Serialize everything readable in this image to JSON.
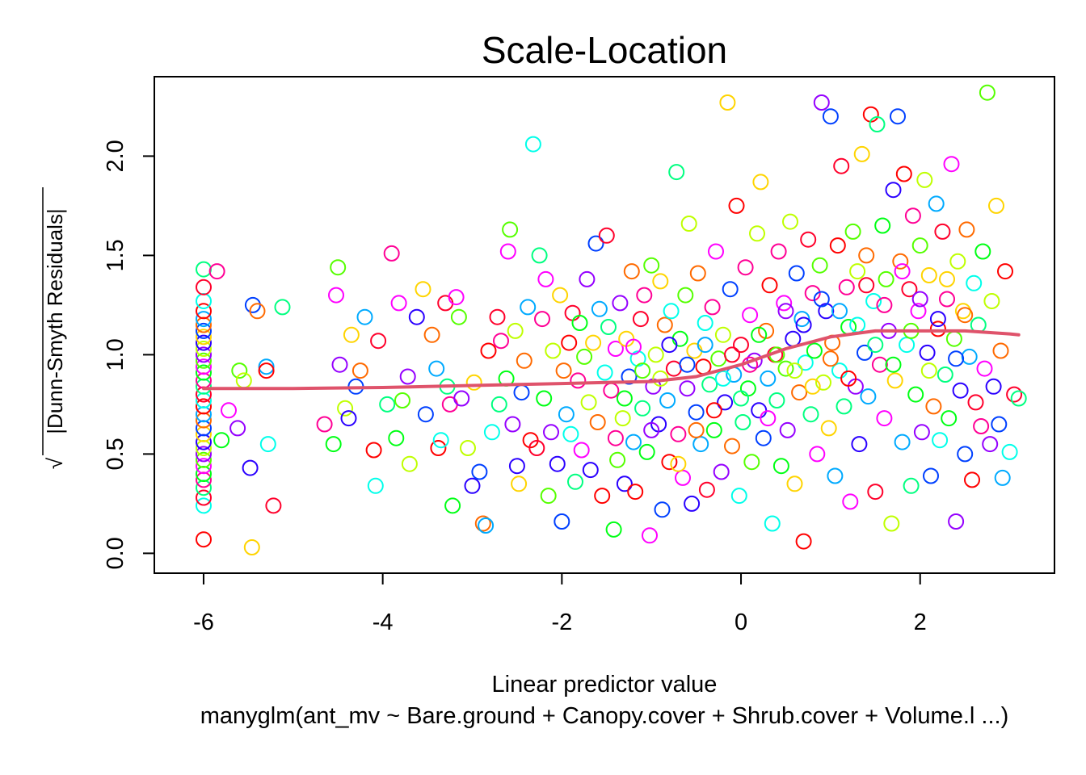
{
  "chart_data": {
    "type": "scatter",
    "title": "Scale-Location",
    "xlabel": "Linear predictor value",
    "subtitle": "manyglm(ant_mv ~ Bare.ground + Canopy.cover + Shrub.cover + Volume.l ...)",
    "ylabel_radical": "√",
    "ylabel": "|Dunn-Smyth Residuals|",
    "xlim": [
      -6.55,
      3.5
    ],
    "ylim": [
      -0.1,
      2.4
    ],
    "xticks": [
      {
        "value": -6,
        "label": "-6"
      },
      {
        "value": -4,
        "label": "-4"
      },
      {
        "value": -2,
        "label": "-2"
      },
      {
        "value": 0,
        "label": "0"
      },
      {
        "value": 2,
        "label": "2"
      }
    ],
    "yticks": [
      {
        "value": 0.0,
        "label": "0.0"
      },
      {
        "value": 0.5,
        "label": "0.5"
      },
      {
        "value": 1.0,
        "label": "1.0"
      },
      {
        "value": 1.5,
        "label": "1.5"
      },
      {
        "value": 2.0,
        "label": "2.0"
      }
    ],
    "marker": "open-circle",
    "palette": [
      "#FF0000",
      "#FF6A00",
      "#FFD400",
      "#BFFF00",
      "#55FF00",
      "#00FF15",
      "#00FF80",
      "#00FFEA",
      "#00AAFF",
      "#0040FF",
      "#2A00FF",
      "#9500FF",
      "#FF00FF",
      "#FF0095",
      "#FF002B"
    ],
    "smooth_color": "#DF536B",
    "points": [
      [
        -6,
        0.07
      ],
      [
        -6,
        0.24
      ],
      [
        -6,
        0.28
      ],
      [
        -6,
        0.33
      ],
      [
        -6,
        0.37
      ],
      [
        -6,
        0.4
      ],
      [
        -6,
        0.44
      ],
      [
        -6,
        0.47
      ],
      [
        -6,
        0.5
      ],
      [
        -6,
        0.53
      ],
      [
        -6,
        0.56
      ],
      [
        -6,
        0.6
      ],
      [
        -6,
        0.63
      ],
      [
        -6,
        0.67
      ],
      [
        -6,
        0.7
      ],
      [
        -6,
        0.74
      ],
      [
        -6,
        0.77
      ],
      [
        -6,
        0.8
      ],
      [
        -6,
        0.84
      ],
      [
        -6,
        0.87
      ],
      [
        -6,
        0.91
      ],
      [
        -6,
        0.94
      ],
      [
        -6,
        0.97
      ],
      [
        -6,
        1.0
      ],
      [
        -6,
        1.03
      ],
      [
        -6,
        1.06
      ],
      [
        -6,
        1.09
      ],
      [
        -6,
        1.12
      ],
      [
        -6,
        1.15
      ],
      [
        -6,
        1.18
      ],
      [
        -6,
        1.22
      ],
      [
        -6,
        1.27
      ],
      [
        -6,
        1.34
      ],
      [
        -6,
        1.43
      ],
      [
        -5.85,
        1.42
      ],
      [
        -5.8,
        0.57
      ],
      [
        -5.72,
        0.72
      ],
      [
        -5.6,
        0.92
      ],
      [
        -5.62,
        0.63
      ],
      [
        -5.55,
        0.87
      ],
      [
        -5.48,
        0.43
      ],
      [
        -5.46,
        0.03
      ],
      [
        -5.45,
        1.25
      ],
      [
        -5.4,
        1.22
      ],
      [
        -5.3,
        0.94
      ],
      [
        -5.3,
        0.92
      ],
      [
        -5.28,
        0.55
      ],
      [
        -5.22,
        0.24
      ],
      [
        -5.12,
        1.24
      ],
      [
        -4.65,
        0.65
      ],
      [
        -4.55,
        0.55
      ],
      [
        -4.52,
        1.3
      ],
      [
        -4.5,
        1.44
      ],
      [
        -4.48,
        0.95
      ],
      [
        -4.42,
        0.73
      ],
      [
        -4.38,
        0.68
      ],
      [
        -4.35,
        1.1
      ],
      [
        -4.3,
        0.84
      ],
      [
        -4.25,
        0.92
      ],
      [
        -4.2,
        1.19
      ],
      [
        -4.1,
        0.52
      ],
      [
        -4.08,
        0.34
      ],
      [
        -4.05,
        1.07
      ],
      [
        -3.95,
        0.75
      ],
      [
        -3.9,
        1.51
      ],
      [
        -3.85,
        0.58
      ],
      [
        -3.82,
        1.26
      ],
      [
        -3.78,
        0.77
      ],
      [
        -3.72,
        0.89
      ],
      [
        -3.7,
        0.45
      ],
      [
        -3.62,
        1.19
      ],
      [
        -3.55,
        1.33
      ],
      [
        -3.52,
        0.7
      ],
      [
        -3.45,
        1.1
      ],
      [
        -3.4,
        0.93
      ],
      [
        -3.38,
        0.53
      ],
      [
        -3.35,
        0.57
      ],
      [
        -3.3,
        1.26
      ],
      [
        -3.28,
        0.84
      ],
      [
        -3.25,
        0.75
      ],
      [
        -3.22,
        0.24
      ],
      [
        -3.18,
        1.29
      ],
      [
        -3.15,
        1.19
      ],
      [
        -3.12,
        0.78
      ],
      [
        -3.05,
        0.53
      ],
      [
        -3.0,
        0.34
      ],
      [
        -2.98,
        0.86
      ],
      [
        -2.92,
        0.41
      ],
      [
        -2.88,
        0.15
      ],
      [
        -2.85,
        0.14
      ],
      [
        -2.82,
        1.02
      ],
      [
        -2.78,
        0.61
      ],
      [
        -2.72,
        1.19
      ],
      [
        -2.7,
        0.75
      ],
      [
        -2.68,
        1.07
      ],
      [
        -2.62,
        0.88
      ],
      [
        -2.6,
        1.52
      ],
      [
        -2.58,
        1.63
      ],
      [
        -2.55,
        0.65
      ],
      [
        -2.52,
        1.12
      ],
      [
        -2.5,
        0.44
      ],
      [
        -2.48,
        0.35
      ],
      [
        -2.45,
        0.81
      ],
      [
        -2.42,
        0.97
      ],
      [
        -2.38,
        1.24
      ],
      [
        -2.35,
        0.57
      ],
      [
        -2.32,
        2.06
      ],
      [
        -2.28,
        0.53
      ],
      [
        -2.25,
        1.5
      ],
      [
        -2.22,
        1.18
      ],
      [
        -2.2,
        0.78
      ],
      [
        -2.18,
        1.38
      ],
      [
        -2.15,
        0.29
      ],
      [
        -2.12,
        0.61
      ],
      [
        -2.1,
        1.02
      ],
      [
        -2.05,
        0.45
      ],
      [
        -2.02,
        1.3
      ],
      [
        -2.0,
        0.16
      ],
      [
        -1.98,
        0.92
      ],
      [
        -1.95,
        0.7
      ],
      [
        -1.92,
        1.06
      ],
      [
        -1.9,
        0.6
      ],
      [
        -1.88,
        1.21
      ],
      [
        -1.85,
        0.36
      ],
      [
        -1.82,
        0.87
      ],
      [
        -1.8,
        1.16
      ],
      [
        -1.78,
        0.52
      ],
      [
        -1.75,
        0.99
      ],
      [
        -1.72,
        1.38
      ],
      [
        -1.7,
        0.76
      ],
      [
        -1.68,
        0.42
      ],
      [
        -1.65,
        1.06
      ],
      [
        -1.62,
        1.56
      ],
      [
        -1.6,
        0.66
      ],
      [
        -1.58,
        1.23
      ],
      [
        -1.55,
        0.29
      ],
      [
        -1.52,
        0.91
      ],
      [
        -1.5,
        1.6
      ],
      [
        -1.48,
        1.14
      ],
      [
        -1.45,
        0.82
      ],
      [
        -1.42,
        0.12
      ],
      [
        -1.4,
        1.03
      ],
      [
        -1.38,
        0.47
      ],
      [
        -1.35,
        1.26
      ],
      [
        -1.32,
        0.68
      ],
      [
        -1.3,
        0.35
      ],
      [
        -1.28,
        1.08
      ],
      [
        -1.25,
        0.89
      ],
      [
        -1.22,
        1.42
      ],
      [
        -1.2,
        0.56
      ],
      [
        -1.18,
        0.31
      ],
      [
        -1.15,
        0.98
      ],
      [
        -1.12,
        1.18
      ],
      [
        -1.1,
        0.73
      ],
      [
        -1.08,
        1.3
      ],
      [
        -1.05,
        0.51
      ],
      [
        -1.02,
        0.09
      ],
      [
        -1.0,
        1.45
      ],
      [
        -0.98,
        0.84
      ],
      [
        -0.95,
        1.0
      ],
      [
        -0.92,
        0.65
      ],
      [
        -0.9,
        1.37
      ],
      [
        -0.88,
        0.22
      ],
      [
        -0.85,
        1.15
      ],
      [
        -0.82,
        0.77
      ],
      [
        -0.8,
        0.46
      ],
      [
        -0.78,
        1.22
      ],
      [
        -0.75,
        0.93
      ],
      [
        -0.72,
        1.92
      ],
      [
        -0.7,
        0.6
      ],
      [
        -0.68,
        1.08
      ],
      [
        -0.65,
        0.38
      ],
      [
        -0.62,
        1.3
      ],
      [
        -0.6,
        0.83
      ],
      [
        -0.58,
        1.66
      ],
      [
        -0.55,
        0.25
      ],
      [
        -0.52,
        1.02
      ],
      [
        -0.5,
        0.71
      ],
      [
        -0.48,
        1.41
      ],
      [
        -0.45,
        0.55
      ],
      [
        -0.42,
        0.94
      ],
      [
        -0.4,
        1.16
      ],
      [
        -0.38,
        0.32
      ],
      [
        -0.35,
        0.85
      ],
      [
        -0.32,
        1.24
      ],
      [
        -0.3,
        0.62
      ],
      [
        -0.28,
        1.52
      ],
      [
        -0.25,
        0.98
      ],
      [
        -0.22,
        0.41
      ],
      [
        -0.2,
        1.1
      ],
      [
        -0.18,
        0.76
      ],
      [
        -0.15,
        2.27
      ],
      [
        -0.12,
        1.33
      ],
      [
        -0.1,
        0.54
      ],
      [
        -0.08,
        0.9
      ],
      [
        -0.05,
        1.75
      ],
      [
        -0.02,
        0.29
      ],
      [
        0.0,
        1.05
      ],
      [
        0.02,
        0.66
      ],
      [
        0.05,
        1.44
      ],
      [
        0.08,
        0.83
      ],
      [
        0.1,
        1.2
      ],
      [
        0.12,
        0.46
      ],
      [
        0.15,
        0.97
      ],
      [
        0.18,
        1.61
      ],
      [
        0.2,
        0.72
      ],
      [
        0.22,
        1.87
      ],
      [
        0.25,
        0.58
      ],
      [
        0.28,
        1.12
      ],
      [
        0.3,
        0.88
      ],
      [
        0.32,
        1.35
      ],
      [
        0.35,
        0.15
      ],
      [
        0.38,
        1.0
      ],
      [
        0.4,
        0.77
      ],
      [
        0.42,
        1.52
      ],
      [
        0.45,
        0.44
      ],
      [
        0.48,
        1.26
      ],
      [
        0.5,
        0.93
      ],
      [
        0.52,
        0.62
      ],
      [
        0.55,
        1.67
      ],
      [
        0.58,
        1.08
      ],
      [
        0.6,
        0.35
      ],
      [
        0.62,
        1.41
      ],
      [
        0.65,
        0.81
      ],
      [
        0.68,
        1.18
      ],
      [
        0.7,
        0.06
      ],
      [
        0.72,
        0.96
      ],
      [
        0.75,
        1.58
      ],
      [
        0.78,
        0.7
      ],
      [
        0.8,
        1.31
      ],
      [
        0.82,
        1.02
      ],
      [
        0.85,
        0.5
      ],
      [
        0.88,
        1.45
      ],
      [
        0.9,
        2.27
      ],
      [
        0.92,
        0.86
      ],
      [
        0.95,
        1.22
      ],
      [
        0.98,
        0.63
      ],
      [
        1.0,
        2.2
      ],
      [
        1.02,
        1.06
      ],
      [
        1.05,
        0.39
      ],
      [
        1.08,
        1.55
      ],
      [
        1.1,
        0.92
      ],
      [
        1.12,
        1.95
      ],
      [
        1.15,
        0.74
      ],
      [
        1.18,
        1.34
      ],
      [
        1.2,
        1.14
      ],
      [
        1.22,
        0.26
      ],
      [
        1.25,
        1.62
      ],
      [
        1.28,
        0.84
      ],
      [
        1.3,
        1.42
      ],
      [
        1.32,
        0.55
      ],
      [
        1.35,
        2.01
      ],
      [
        1.38,
        1.01
      ],
      [
        1.4,
        1.5
      ],
      [
        1.42,
        0.79
      ],
      [
        1.45,
        2.21
      ],
      [
        1.48,
        1.27
      ],
      [
        1.5,
        0.31
      ],
      [
        1.52,
        2.16
      ],
      [
        1.55,
        0.95
      ],
      [
        1.58,
        1.65
      ],
      [
        1.6,
        0.68
      ],
      [
        1.62,
        1.38
      ],
      [
        1.65,
        1.12
      ],
      [
        1.68,
        0.15
      ],
      [
        1.7,
        1.83
      ],
      [
        1.72,
        0.87
      ],
      [
        1.75,
        2.2
      ],
      [
        1.78,
        1.47
      ],
      [
        1.8,
        0.56
      ],
      [
        1.82,
        1.91
      ],
      [
        1.85,
        1.05
      ],
      [
        1.88,
        1.33
      ],
      [
        1.9,
        0.34
      ],
      [
        1.92,
        1.7
      ],
      [
        1.95,
        0.8
      ],
      [
        1.98,
        1.22
      ],
      [
        2.0,
        1.55
      ],
      [
        2.02,
        0.61
      ],
      [
        2.05,
        1.88
      ],
      [
        2.08,
        1.01
      ],
      [
        2.1,
        1.4
      ],
      [
        2.12,
        0.39
      ],
      [
        2.15,
        0.74
      ],
      [
        2.18,
        1.76
      ],
      [
        2.2,
        1.13
      ],
      [
        2.22,
        0.57
      ],
      [
        2.25,
        1.62
      ],
      [
        2.28,
        0.9
      ],
      [
        2.3,
        1.28
      ],
      [
        2.32,
        0.68
      ],
      [
        2.35,
        1.96
      ],
      [
        2.38,
        1.08
      ],
      [
        2.4,
        0.16
      ],
      [
        2.42,
        1.47
      ],
      [
        2.45,
        0.82
      ],
      [
        2.48,
        1.22
      ],
      [
        2.5,
        0.5
      ],
      [
        2.52,
        1.63
      ],
      [
        2.55,
        0.99
      ],
      [
        2.58,
        0.37
      ],
      [
        2.6,
        1.36
      ],
      [
        2.62,
        0.76
      ],
      [
        2.65,
        1.15
      ],
      [
        2.68,
        0.64
      ],
      [
        2.7,
        1.52
      ],
      [
        2.72,
        0.93
      ],
      [
        2.75,
        2.32
      ],
      [
        2.78,
        0.55
      ],
      [
        2.8,
        1.27
      ],
      [
        2.82,
        0.84
      ],
      [
        2.85,
        1.75
      ],
      [
        2.88,
        0.65
      ],
      [
        2.9,
        1.02
      ],
      [
        2.92,
        0.38
      ],
      [
        2.95,
        1.42
      ],
      [
        3.0,
        0.51
      ],
      [
        3.05,
        0.8
      ],
      [
        3.1,
        0.78
      ],
      [
        -1.4,
        0.58
      ],
      [
        -1.3,
        0.78
      ],
      [
        -1.2,
        1.04
      ],
      [
        -1.1,
        0.92
      ],
      [
        -1.0,
        0.62
      ],
      [
        -0.9,
        0.88
      ],
      [
        -0.8,
        1.05
      ],
      [
        -0.7,
        0.45
      ],
      [
        -0.6,
        0.95
      ],
      [
        -0.5,
        0.62
      ],
      [
        -0.4,
        1.05
      ],
      [
        -0.3,
        0.72
      ],
      [
        -0.2,
        0.88
      ],
      [
        -0.1,
        1.0
      ],
      [
        0.0,
        0.78
      ],
      [
        0.1,
        0.95
      ],
      [
        0.2,
        1.1
      ],
      [
        0.3,
        0.68
      ],
      [
        0.4,
        1.0
      ],
      [
        0.5,
        1.22
      ],
      [
        0.6,
        0.92
      ],
      [
        0.7,
        1.15
      ],
      [
        0.8,
        0.84
      ],
      [
        0.9,
        1.28
      ],
      [
        1.0,
        0.98
      ],
      [
        1.1,
        1.22
      ],
      [
        1.2,
        0.88
      ],
      [
        1.3,
        1.15
      ],
      [
        1.4,
        1.35
      ],
      [
        1.5,
        1.05
      ],
      [
        1.6,
        1.25
      ],
      [
        1.7,
        0.95
      ],
      [
        1.8,
        1.42
      ],
      [
        1.9,
        1.12
      ],
      [
        2.0,
        1.28
      ],
      [
        2.1,
        0.92
      ],
      [
        2.2,
        1.18
      ],
      [
        2.3,
        1.38
      ],
      [
        2.4,
        0.98
      ],
      [
        2.5,
        1.2
      ]
    ],
    "smooth": [
      [
        -6.0,
        0.83
      ],
      [
        -5.0,
        0.83
      ],
      [
        -4.0,
        0.835
      ],
      [
        -3.0,
        0.845
      ],
      [
        -2.0,
        0.855
      ],
      [
        -1.5,
        0.86
      ],
      [
        -1.0,
        0.865
      ],
      [
        -0.5,
        0.89
      ],
      [
        0.0,
        0.95
      ],
      [
        0.5,
        1.03
      ],
      [
        1.0,
        1.09
      ],
      [
        1.5,
        1.12
      ],
      [
        2.0,
        1.12
      ],
      [
        2.5,
        1.12
      ],
      [
        3.0,
        1.105
      ],
      [
        3.1,
        1.1
      ]
    ]
  }
}
